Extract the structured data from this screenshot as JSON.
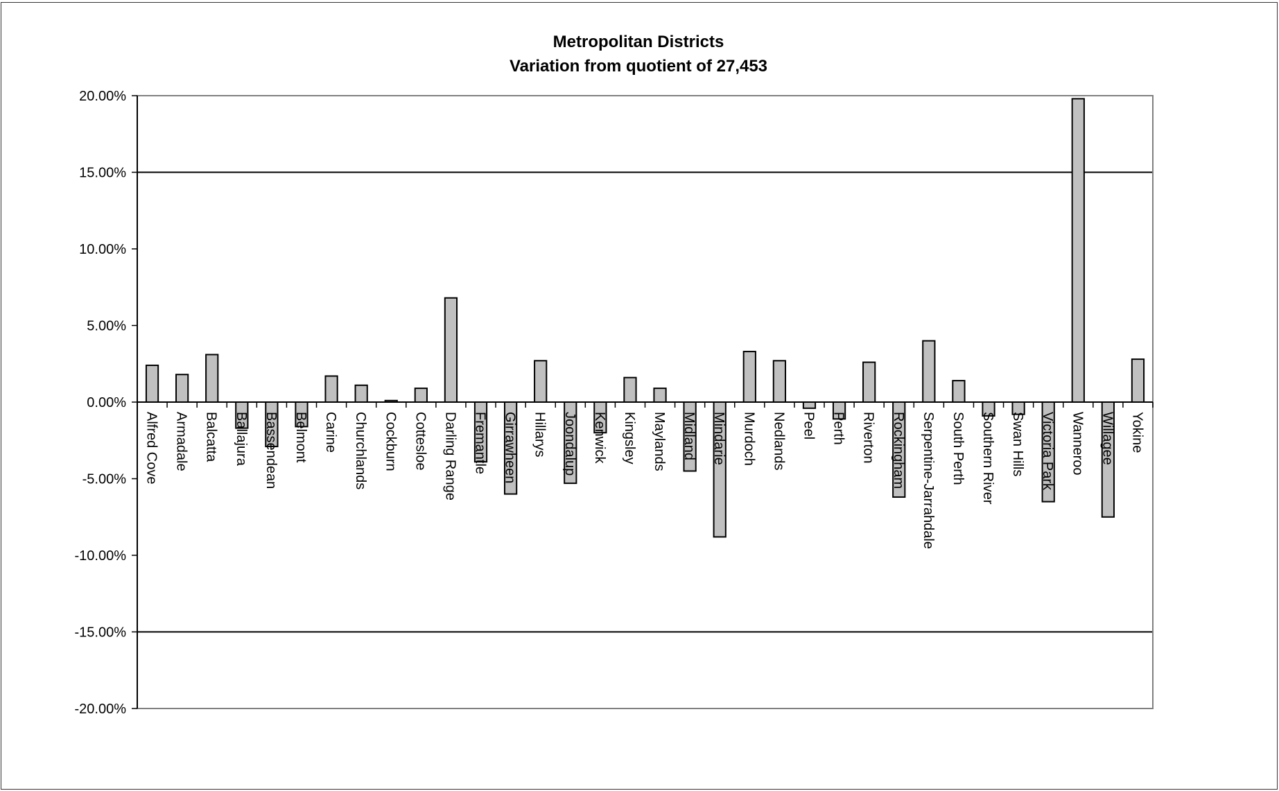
{
  "chart_data": {
    "type": "bar",
    "title": "Metropolitan Districts",
    "subtitle": "Variation from quotient of 27,453",
    "xlabel": "",
    "ylabel": "",
    "ylim": [
      -20,
      20
    ],
    "yticks": [
      "20.00%",
      "15.00%",
      "10.00%",
      "5.00%",
      "0.00%",
      "-5.00%",
      "-10.00%",
      "-15.00%",
      "-20.00%"
    ],
    "gridlines": [
      15,
      -15
    ],
    "bar_color": "#c0c0c0",
    "legend": "none",
    "categories": [
      "Alfred Cove",
      "Armadale",
      "Balcatta",
      "Ballajura",
      "Bassendean",
      "Belmont",
      "Carine",
      "Churchlands",
      "Cockburn",
      "Cottesloe",
      "Darling Range",
      "Fremantle",
      "Girrawheen",
      "Hillarys",
      "Joondalup",
      "Kenwick",
      "Kingsley",
      "Maylands",
      "Midland",
      "Mindarie",
      "Murdoch",
      "Nedlands",
      "Peel",
      "Perth",
      "Riverton",
      "Rockingham",
      "Serpentine-Jarrahdale",
      "South Perth",
      "Southern River",
      "Swan Hills",
      "Victoria Park",
      "Wanneroo",
      "Willagee",
      "Yokine"
    ],
    "values": [
      2.4,
      1.8,
      3.1,
      -1.7,
      -2.9,
      -1.6,
      1.7,
      1.1,
      0.1,
      0.9,
      6.8,
      -3.9,
      -6.0,
      2.7,
      -5.3,
      -2.0,
      1.6,
      0.9,
      -4.5,
      -8.8,
      3.3,
      2.7,
      -0.4,
      -1.1,
      2.6,
      -6.2,
      4.0,
      1.4,
      -0.9,
      -0.8,
      -6.5,
      19.8,
      -7.5,
      2.8
    ]
  }
}
